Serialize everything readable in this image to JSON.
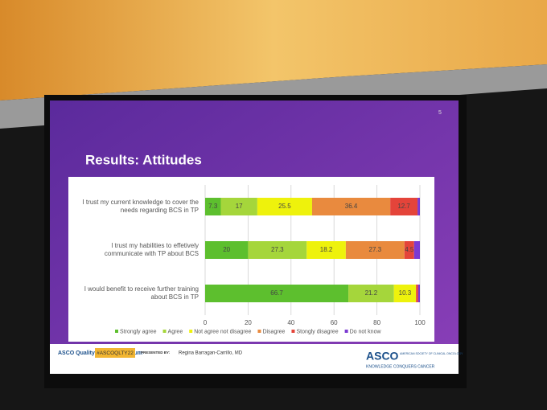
{
  "chart_data": {
    "type": "stacked-bar-horizontal",
    "title": "Results: Attitudes",
    "categories": [
      "I trust my current knowledge to cover the needs regarding BCS in TP",
      "I trust my habilities to effetively communicate with TP about BCS",
      "I would benefit to receive further training about BCS in TP"
    ],
    "series": [
      {
        "name": "Strongly agree",
        "color": "#5dbf2e",
        "values": [
          7.3,
          20,
          66.7
        ]
      },
      {
        "name": "Agree",
        "color": "#a5d63b",
        "values": [
          17,
          27.3,
          21.2
        ]
      },
      {
        "name": "Not agree not disagree",
        "color": "#eef20c",
        "values": [
          25.5,
          18.2,
          10.3
        ]
      },
      {
        "name": "Disagree",
        "color": "#e98a3e",
        "values": [
          36.4,
          27.3,
          0
        ]
      },
      {
        "name": "Stongly disagree",
        "color": "#e4443a",
        "values": [
          12.7,
          4.5,
          1
        ]
      },
      {
        "name": "Do not know",
        "color": "#7b3ad2",
        "values": [
          1.1,
          2.7,
          0.8
        ]
      }
    ],
    "xlim": [
      0,
      100
    ],
    "xticks": [
      0,
      20,
      40,
      60,
      80,
      100
    ],
    "grid": true
  },
  "slide": {
    "page_number": "5",
    "symposium": "ASCO Quality Care Symposium",
    "hashtag": "#ASCOQLTY22",
    "presented_by": "PRESENTED BY:",
    "presenter": "Regina Barragan-Carrillo, MD",
    "logo": "ASCO",
    "society": "AMERICAN SOCIETY OF CLINICAL ONCOLOGY",
    "tagline": "KNOWLEDGE CONQUERS CANCER"
  }
}
